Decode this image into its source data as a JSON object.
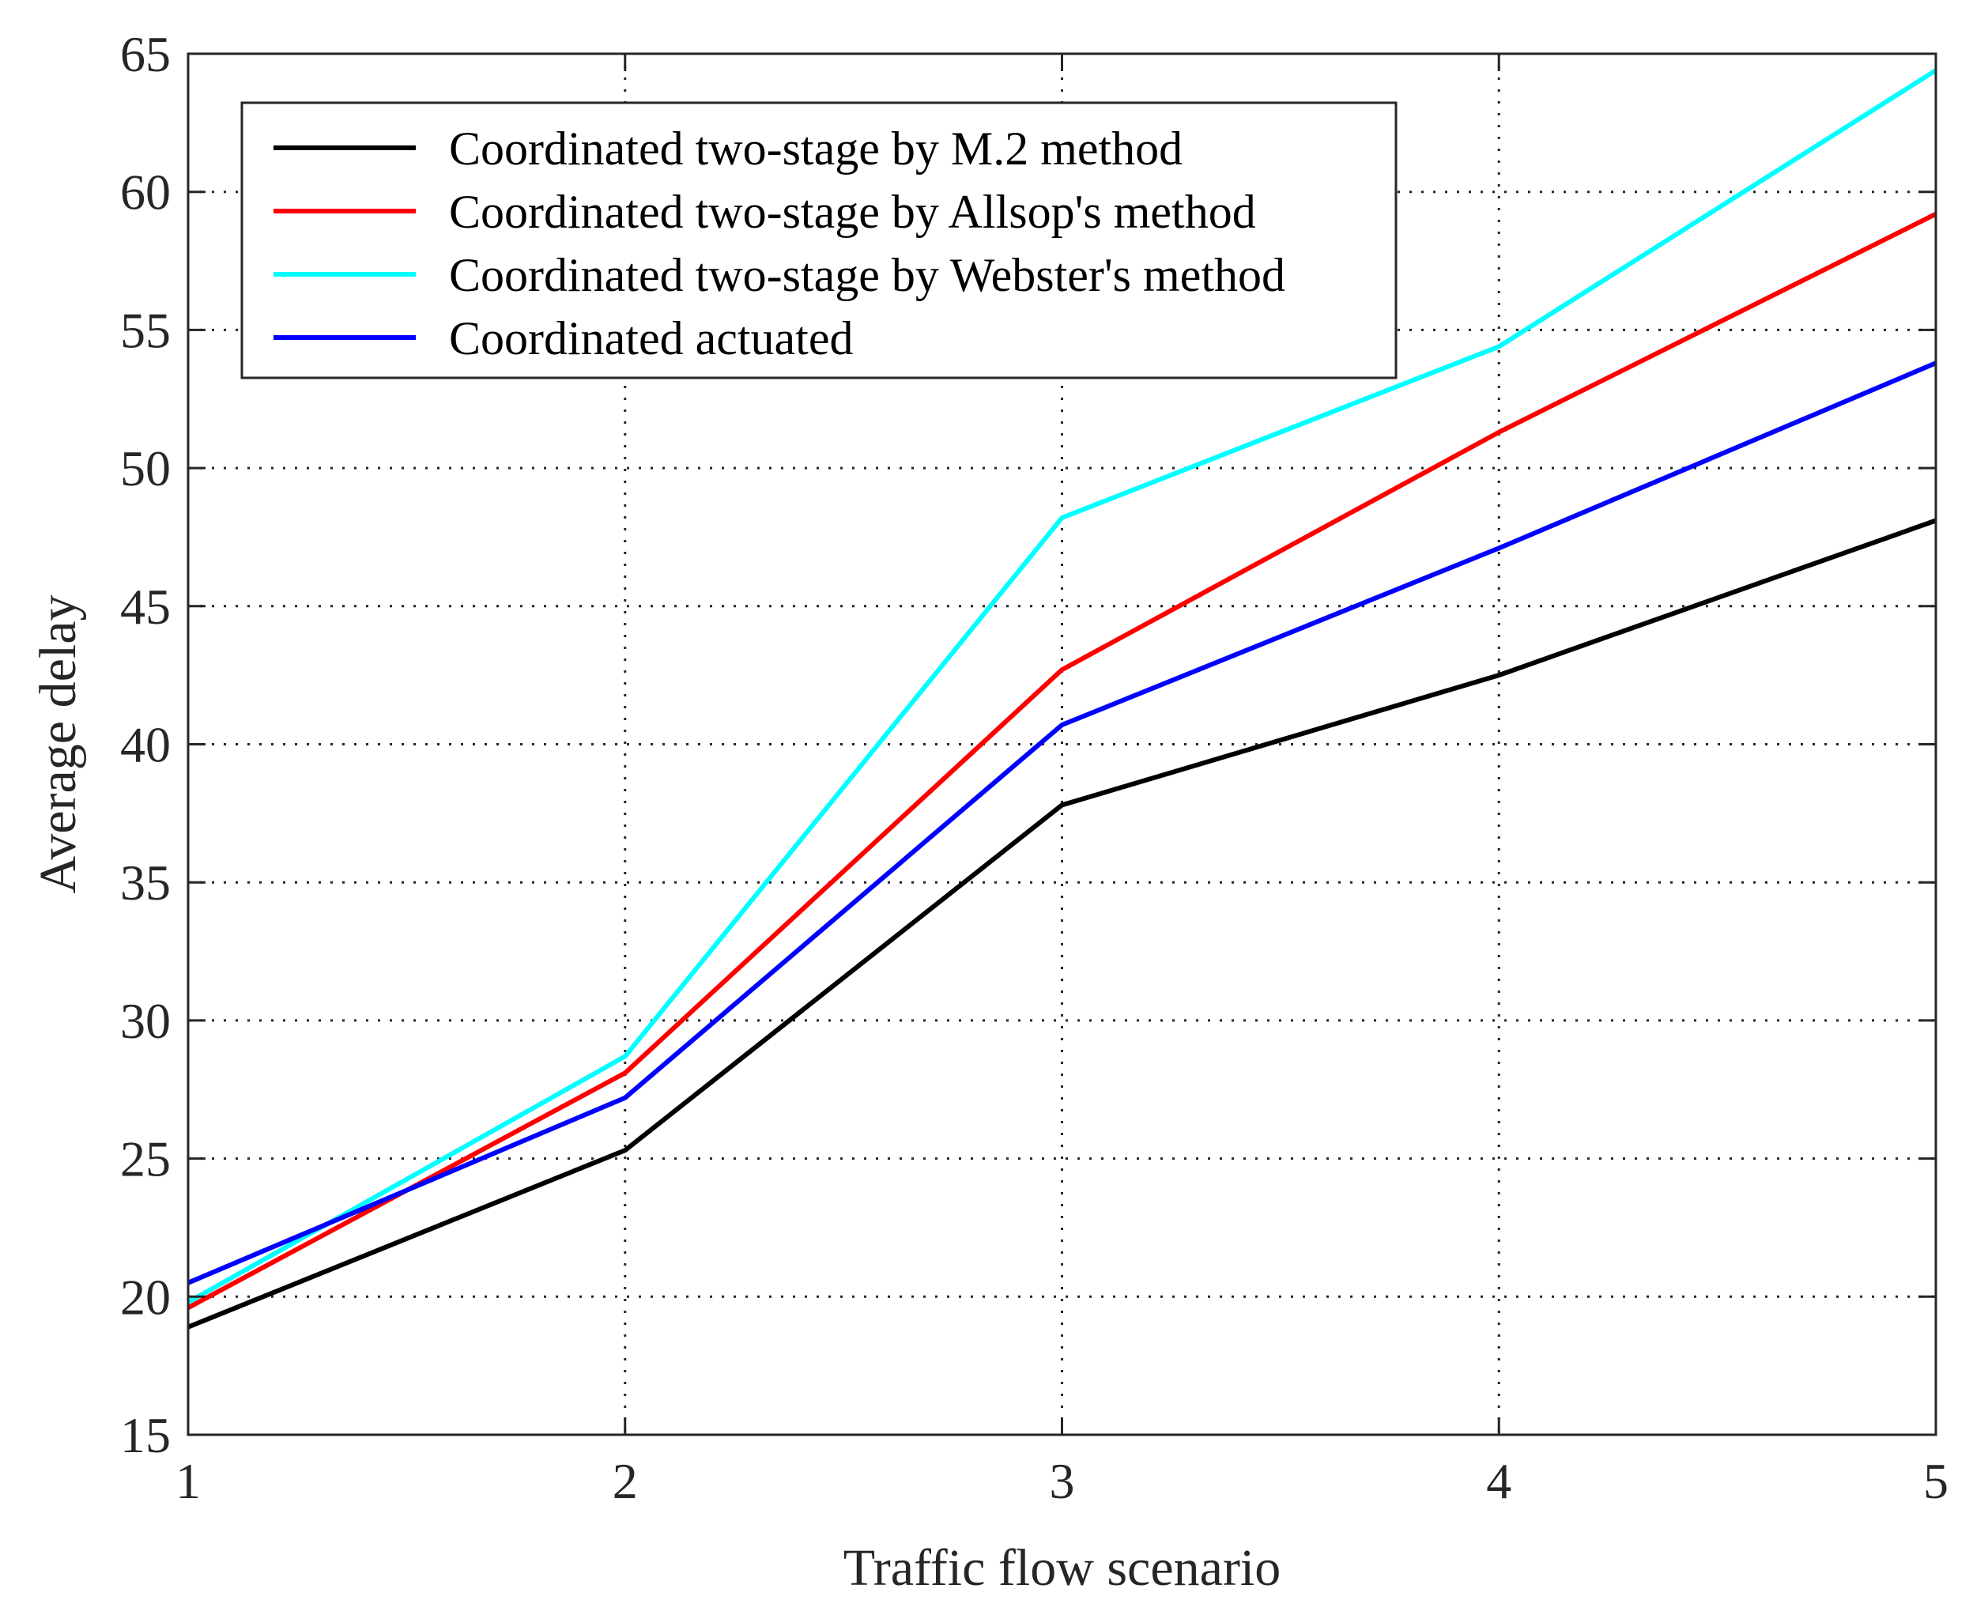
{
  "chart_data": {
    "type": "line",
    "title": "",
    "xlabel": "Traffic flow scenario",
    "ylabel": "Average delay",
    "x": [
      1,
      2,
      3,
      4,
      5
    ],
    "xlim": [
      1,
      5
    ],
    "ylim": [
      15,
      65
    ],
    "xticks": [
      1,
      2,
      3,
      4,
      5
    ],
    "yticks": [
      15,
      20,
      25,
      30,
      35,
      40,
      45,
      50,
      55,
      60,
      65
    ],
    "grid": true,
    "legend_position": "top-left",
    "series": [
      {
        "name": "Coordinated two-stage by M.2 method",
        "color": "#000000",
        "values": [
          18.9,
          25.3,
          37.8,
          42.5,
          48.1
        ]
      },
      {
        "name": "Coordinated two-stage by Allsop's method",
        "color": "#ff0000",
        "values": [
          19.6,
          28.1,
          42.7,
          51.3,
          59.2
        ]
      },
      {
        "name": "Coordinated two-stage by Webster's method",
        "color": "#00ffff",
        "values": [
          19.8,
          28.7,
          48.2,
          54.4,
          64.4
        ]
      },
      {
        "name": "Coordinated actuated",
        "color": "#0000ff",
        "values": [
          20.5,
          27.2,
          40.7,
          47.1,
          53.8
        ]
      }
    ]
  }
}
